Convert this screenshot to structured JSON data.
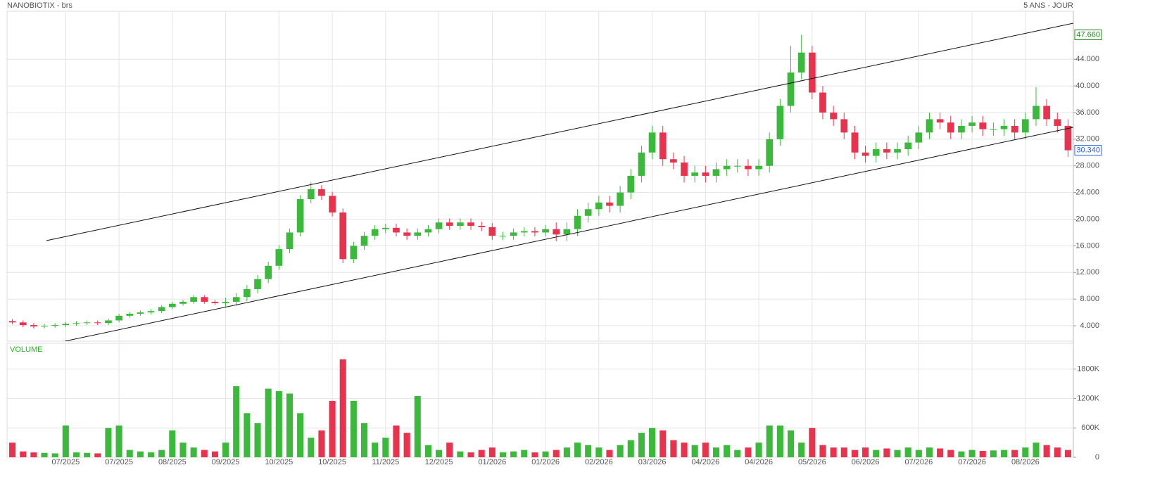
{
  "chart_data": [
    {
      "type": "candlestick",
      "title": "NANOBIOTIX - brs",
      "subtitle": "5 ANS - JOUR",
      "categories": [
        null,
        null,
        null,
        null,
        null,
        "07/2025",
        null,
        null,
        null,
        null,
        "07/2025",
        null,
        null,
        null,
        null,
        "08/2025",
        null,
        null,
        null,
        null,
        "09/2025",
        null,
        null,
        null,
        null,
        "10/2025",
        null,
        null,
        null,
        null,
        "10/2025",
        null,
        null,
        null,
        null,
        "11/2025",
        null,
        null,
        null,
        null,
        "12/2025",
        null,
        null,
        null,
        null,
        "01/2026",
        null,
        null,
        null,
        null,
        "01/2026",
        null,
        null,
        null,
        null,
        "02/2026",
        null,
        null,
        null,
        null,
        "03/2026",
        null,
        null,
        null,
        null,
        "04/2026",
        null,
        null,
        null,
        null,
        "04/2026",
        null,
        null,
        null,
        null,
        "05/2026",
        null,
        null,
        null,
        null,
        "06/2026",
        null,
        null,
        null,
        null,
        "07/2026",
        null,
        null,
        null,
        null,
        "07/2026",
        null,
        null,
        null,
        null,
        "08/2026",
        null,
        null,
        null,
        null
      ],
      "open": [
        4.7,
        4.5,
        4.1,
        3.9,
        4.0,
        4.1,
        4.3,
        4.4,
        4.5,
        4.4,
        4.8,
        5.5,
        5.8,
        6.0,
        6.2,
        6.8,
        7.3,
        7.6,
        8.3,
        7.6,
        7.4,
        7.6,
        8.3,
        9.5,
        11.0,
        13.0,
        15.5,
        18.0,
        23.0,
        24.5,
        23.5,
        21.0,
        14.0,
        16.0,
        17.5,
        18.5,
        18.7,
        18.0,
        17.5,
        18.0,
        18.5,
        19.5,
        19.0,
        19.5,
        19.0,
        18.8,
        17.5,
        17.5,
        18.0,
        18.2,
        18.0,
        18.5,
        17.7,
        18.5,
        20.5,
        21.5,
        22.5,
        22.0,
        24.0,
        26.5,
        30.0,
        33.0,
        29.0,
        28.5,
        26.5,
        27.0,
        26.5,
        27.5,
        28.0,
        28.0,
        27.5,
        28.0,
        32.0,
        37.0,
        42.0,
        45.0,
        39.0,
        36.0,
        35.0,
        33.0,
        30.0,
        29.5,
        30.5,
        30.0,
        30.5,
        31.5,
        33.0,
        35.0,
        34.5,
        33.0,
        34.0,
        34.5,
        33.5,
        33.5,
        34.0,
        33.0,
        35.0,
        37.0,
        35.0,
        34.0
      ],
      "high": [
        5.0,
        4.8,
        4.4,
        4.3,
        4.4,
        4.6,
        4.7,
        4.8,
        4.8,
        5.1,
        5.8,
        6.1,
        6.3,
        6.5,
        7.1,
        7.6,
        7.9,
        8.6,
        8.6,
        7.9,
        8.2,
        8.9,
        10.1,
        11.6,
        13.6,
        16.1,
        18.6,
        23.6,
        25.5,
        25.1,
        24.1,
        21.6,
        16.6,
        18.1,
        19.1,
        19.3,
        19.3,
        18.6,
        18.6,
        19.1,
        20.1,
        20.1,
        20.1,
        20.1,
        19.6,
        19.4,
        18.1,
        18.6,
        18.8,
        18.8,
        19.1,
        19.5,
        19.5,
        21.5,
        22.5,
        23.5,
        23.5,
        25.0,
        27.5,
        31.0,
        34.0,
        34.0,
        30.0,
        29.5,
        28.0,
        28.0,
        28.5,
        29.0,
        29.0,
        29.0,
        29.0,
        33.0,
        38.0,
        46,
        47.66,
        46.0,
        40.0,
        37.0,
        36.0,
        34.0,
        31.0,
        31.5,
        31.5,
        31.5,
        32.5,
        34.0,
        36.0,
        36.0,
        35.5,
        35.0,
        35.5,
        35.5,
        34.5,
        35.0,
        35.0,
        36.0,
        39.8,
        38.0,
        36.0,
        35.0
      ],
      "low": [
        4.2,
        3.8,
        3.6,
        3.6,
        3.7,
        3.8,
        4.0,
        4.1,
        4.1,
        4.1,
        4.5,
        5.2,
        5.5,
        5.7,
        5.9,
        6.5,
        7.0,
        7.3,
        7.3,
        7.1,
        6.8,
        7.0,
        7.7,
        8.9,
        10.4,
        12.4,
        14.9,
        17.4,
        22.4,
        22.9,
        20.4,
        13.4,
        13.4,
        15.4,
        16.9,
        17.9,
        17.4,
        16.9,
        16.9,
        17.4,
        17.9,
        18.4,
        18.4,
        18.4,
        18.2,
        16.9,
        16.9,
        16.9,
        17.4,
        17.4,
        17.4,
        16.7,
        16.7,
        17.5,
        19.5,
        20.5,
        21.0,
        21.0,
        23.0,
        25.5,
        29.0,
        28.0,
        27.5,
        25.5,
        25.5,
        25.5,
        25.5,
        26.5,
        27.0,
        26.5,
        26.5,
        27.0,
        31.0,
        36.0,
        41.0,
        38.0,
        35.0,
        34.0,
        32.0,
        29.0,
        28.5,
        28.5,
        29.0,
        29.0,
        29.5,
        30.5,
        32.0,
        33.5,
        32.0,
        32.0,
        33.0,
        32.5,
        32.5,
        32.5,
        32.0,
        32.0,
        34.0,
        34.0,
        33.0,
        29.34
      ],
      "close": [
        4.5,
        4.1,
        3.9,
        4.0,
        4.1,
        4.3,
        4.4,
        4.5,
        4.4,
        4.8,
        5.5,
        5.8,
        6.0,
        6.2,
        6.8,
        7.3,
        7.6,
        8.3,
        7.6,
        7.4,
        7.6,
        8.3,
        9.5,
        11.0,
        13.0,
        15.5,
        18.0,
        23.0,
        24.5,
        23.5,
        21.0,
        14.0,
        16.0,
        17.5,
        18.5,
        18.7,
        18.0,
        17.5,
        18.0,
        18.5,
        19.5,
        19.0,
        19.5,
        19.0,
        18.8,
        17.5,
        17.5,
        18.0,
        18.2,
        18.0,
        18.5,
        17.7,
        18.5,
        20.5,
        21.5,
        22.5,
        22.0,
        24.0,
        26.5,
        30.0,
        33.0,
        29.0,
        28.5,
        26.5,
        27.0,
        26.5,
        27.5,
        28.0,
        28.0,
        27.5,
        28.0,
        32.0,
        37.0,
        42.0,
        45.0,
        39.0,
        36.0,
        35.0,
        33.0,
        30.0,
        29.5,
        30.5,
        30.0,
        30.5,
        31.5,
        33.0,
        35.0,
        34.5,
        33.0,
        34.0,
        34.5,
        33.5,
        33.5,
        34.0,
        33.0,
        35.0,
        37.0,
        35.0,
        34.0,
        30.34
      ],
      "up_color": "#3cb93c",
      "down_color": "#e8334f",
      "ylim": [
        1.68,
        51.2
      ],
      "yticks": [
        {
          "value": 4,
          "label": "4.000"
        },
        {
          "value": 8,
          "label": "8.000"
        },
        {
          "value": 12,
          "label": "12.000"
        },
        {
          "value": 16,
          "label": "16.000"
        },
        {
          "value": 20,
          "label": "20.000"
        },
        {
          "value": 24,
          "label": "24.000"
        },
        {
          "value": 28,
          "label": "28.000"
        },
        {
          "value": 32,
          "label": "32.000"
        },
        {
          "value": 36,
          "label": "36.000"
        },
        {
          "value": 40,
          "label": "40.000"
        },
        {
          "value": 44,
          "label": "44.000"
        }
      ],
      "markers": [
        {
          "value": 47.66,
          "label": "47.660",
          "color": "#1a8c1a"
        },
        {
          "value": 30.34,
          "label": "30.340",
          "color": "#2a62d8"
        }
      ],
      "grid": true
    },
    {
      "type": "bar",
      "title": "VOLUME",
      "values": [
        300000,
        120000,
        100000,
        90000,
        80000,
        650000,
        100000,
        90000,
        80000,
        600000,
        650000,
        150000,
        120000,
        100000,
        150000,
        550000,
        300000,
        200000,
        150000,
        120000,
        300000,
        1450000,
        900000,
        700000,
        1400000,
        1350000,
        1300000,
        900000,
        400000,
        550000,
        1150000,
        2000000,
        1150000,
        700000,
        300000,
        400000,
        650000,
        500000,
        1250000,
        250000,
        150000,
        300000,
        120000,
        100000,
        150000,
        200000,
        100000,
        120000,
        150000,
        100000,
        120000,
        150000,
        200000,
        300000,
        250000,
        200000,
        150000,
        250000,
        350000,
        500000,
        600000,
        550000,
        350000,
        300000,
        250000,
        300000,
        200000,
        250000,
        150000,
        200000,
        300000,
        650000,
        650000,
        550000,
        300000,
        600000,
        250000,
        200000,
        200000,
        150000,
        200000,
        150000,
        180000,
        150000,
        200000,
        150000,
        200000,
        180000,
        150000,
        120000,
        150000,
        130000,
        140000,
        150000,
        150000,
        200000,
        300000,
        250000,
        200000,
        150000
      ],
      "ylim": [
        0,
        2325000
      ],
      "yticks": [
        0,
        {
          "value": 600000,
          "label": "600K"
        },
        {
          "value": 1200000,
          "label": "1200K"
        },
        {
          "value": 1800000,
          "label": "1800K"
        }
      ],
      "grid": true
    }
  ]
}
